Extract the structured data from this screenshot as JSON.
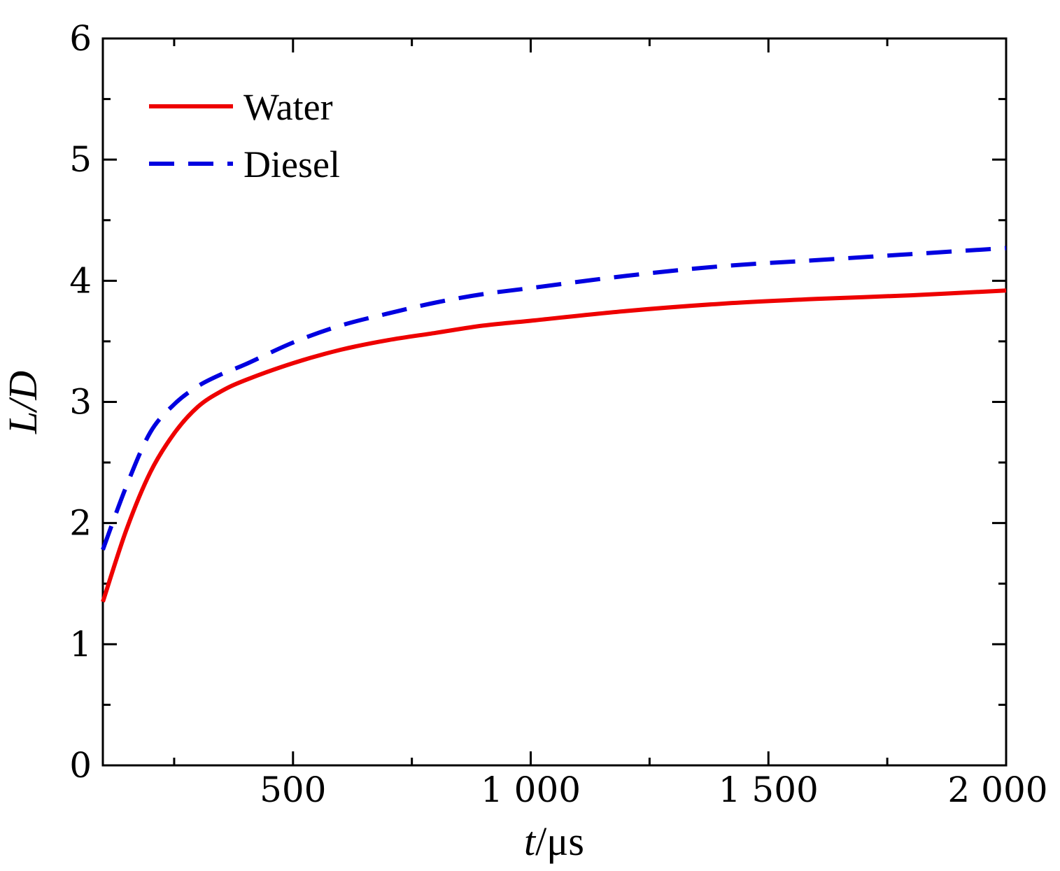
{
  "chart_data": {
    "type": "line",
    "title": "",
    "xlabel": "t/μs",
    "xlabel_parts": {
      "var": "t",
      "unit": "/μs"
    },
    "ylabel": "L/D",
    "xlim": [
      100,
      2000
    ],
    "ylim": [
      0,
      6
    ],
    "x_ticks": [
      500,
      1000,
      1500,
      2000
    ],
    "x_tick_labels": [
      "500",
      "1 000",
      "1 500",
      "2 000"
    ],
    "x_minor_step": 250,
    "y_ticks": [
      0,
      1,
      2,
      3,
      4,
      5,
      6
    ],
    "y_tick_labels": [
      "0",
      "1",
      "2",
      "3",
      "4",
      "5",
      "6"
    ],
    "y_minor_step": 0.5,
    "grid": false,
    "legend_position": "top-left",
    "series": [
      {
        "name": "Water",
        "color": "#ee0000",
        "style": "solid",
        "x": [
          100,
          150,
          200,
          250,
          300,
          350,
          400,
          500,
          600,
          700,
          800,
          900,
          1000,
          1200,
          1400,
          1600,
          1800,
          2000
        ],
        "y": [
          1.35,
          1.95,
          2.42,
          2.74,
          2.96,
          3.09,
          3.18,
          3.32,
          3.43,
          3.51,
          3.57,
          3.63,
          3.67,
          3.75,
          3.81,
          3.85,
          3.88,
          3.92
        ]
      },
      {
        "name": "Diesel",
        "color": "#0000e0",
        "style": "dashed",
        "x": [
          100,
          150,
          200,
          250,
          300,
          350,
          400,
          500,
          600,
          700,
          800,
          900,
          1000,
          1200,
          1400,
          1600,
          1800,
          2000
        ],
        "y": [
          1.78,
          2.31,
          2.75,
          2.98,
          3.13,
          3.23,
          3.31,
          3.49,
          3.63,
          3.73,
          3.82,
          3.89,
          3.94,
          4.04,
          4.12,
          4.17,
          4.22,
          4.27
        ]
      }
    ]
  }
}
